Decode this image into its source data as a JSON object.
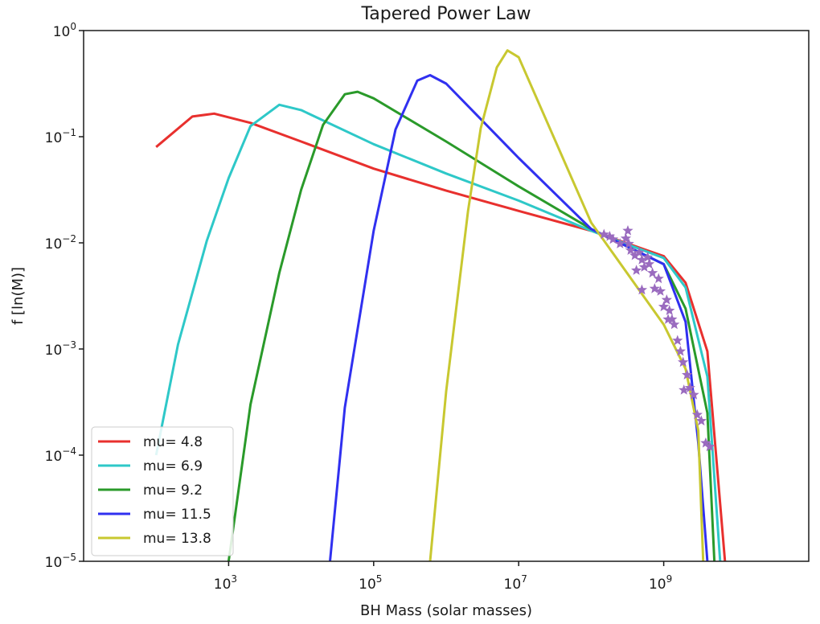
{
  "chart_data": {
    "type": "line",
    "title": "Tapered Power Law",
    "xlabel": "BH Mass (solar masses)",
    "ylabel": "f [ln(M)]",
    "xscale": "log",
    "yscale": "log",
    "xlim": [
      10.0,
      100000000000.0
    ],
    "ylim": [
      1e-05,
      1
    ],
    "x_ticks": [
      {
        "value": 1000,
        "base": "10",
        "exp": "3"
      },
      {
        "value": 100000,
        "base": "10",
        "exp": "5"
      },
      {
        "value": 10000000,
        "base": "10",
        "exp": "7"
      },
      {
        "value": 1000000000,
        "base": "10",
        "exp": "9"
      }
    ],
    "y_ticks": [
      {
        "value": 1,
        "base": "10",
        "exp": "0"
      },
      {
        "value": 0.1,
        "base": "10",
        "exp": "−1"
      },
      {
        "value": 0.01,
        "base": "10",
        "exp": "−2"
      },
      {
        "value": 0.001,
        "base": "10",
        "exp": "−3"
      },
      {
        "value": 0.0001,
        "base": "10",
        "exp": "−4"
      },
      {
        "value": 1e-05,
        "base": "10",
        "exp": "−5"
      }
    ],
    "legend_position": "lower-left",
    "grid": false,
    "series": [
      {
        "name": "mu= 4.8",
        "color": "#e8302e",
        "mu": 4.8,
        "ypeak": 0.165,
        "points": [
          [
            100,
            0.08
          ],
          [
            316,
            0.155
          ],
          [
            631,
            0.165
          ],
          [
            2000,
            0.135
          ],
          [
            10000.0,
            0.09
          ],
          [
            100000.0,
            0.05
          ],
          [
            1000000.0,
            0.031
          ],
          [
            10000000.0,
            0.02
          ],
          [
            100000000.0,
            0.013
          ],
          [
            1000000000.0,
            0.0075
          ],
          [
            2000000000.0,
            0.0042
          ],
          [
            4000000000.0,
            0.00095
          ],
          [
            7000000000.0,
            1e-05
          ]
        ]
      },
      {
        "name": "mu= 6.9",
        "color": "#2ec8c8",
        "mu": 6.9,
        "ypeak": 0.2,
        "points": [
          [
            100,
            0.0001
          ],
          [
            200,
            0.0011
          ],
          [
            501,
            0.0105
          ],
          [
            1000.0,
            0.0407
          ],
          [
            2000.0,
            0.126
          ],
          [
            5000.0,
            0.2
          ],
          [
            10000.0,
            0.178
          ],
          [
            100000.0,
            0.085
          ],
          [
            1000000.0,
            0.045
          ],
          [
            10000000.0,
            0.025
          ],
          [
            100000000.0,
            0.013
          ],
          [
            1000000000.0,
            0.0072
          ],
          [
            2000000000.0,
            0.0038
          ],
          [
            4000000000.0,
            0.00055
          ],
          [
            6000000000.0,
            1e-05
          ]
        ]
      },
      {
        "name": "mu= 9.2",
        "color": "#2a9a2a",
        "mu": 9.2,
        "ypeak": 0.265,
        "points": [
          [
            1000,
            1e-05
          ],
          [
            2000.0,
            0.0003
          ],
          [
            5000.0,
            0.0052
          ],
          [
            10000.0,
            0.0316
          ],
          [
            20000.0,
            0.129
          ],
          [
            40000.0,
            0.251
          ],
          [
            60000.0,
            0.265
          ],
          [
            100000.0,
            0.23
          ],
          [
            1000000.0,
            0.09
          ],
          [
            10000000.0,
            0.034
          ],
          [
            100000000.0,
            0.0135
          ],
          [
            1000000000.0,
            0.0063
          ],
          [
            2000000000.0,
            0.0024
          ],
          [
            4000000000.0,
            0.00025
          ],
          [
            5000000000.0,
            1e-05
          ]
        ]
      },
      {
        "name": "mu= 11.5",
        "color": "#3030f0",
        "mu": 11.5,
        "ypeak": 0.38,
        "points": [
          [
            25000.0,
            1e-05
          ],
          [
            40000.0,
            0.00028
          ],
          [
            100000.0,
            0.013
          ],
          [
            200000.0,
            0.117
          ],
          [
            400000.0,
            0.338
          ],
          [
            600000.0,
            0.38
          ],
          [
            1000000.0,
            0.316
          ],
          [
            10000000.0,
            0.063
          ],
          [
            100000000.0,
            0.0135
          ],
          [
            1000000000.0,
            0.0063
          ],
          [
            2000000000.0,
            0.0018
          ],
          [
            3000000000.0,
            0.00013
          ],
          [
            4000000000.0,
            1e-05
          ]
        ]
      },
      {
        "name": "mu= 13.8",
        "color": "#c8c830",
        "mu": 13.8,
        "ypeak": 0.65,
        "points": [
          [
            600000.0,
            1e-05
          ],
          [
            1000000.0,
            0.0004
          ],
          [
            2000000.0,
            0.02
          ],
          [
            3000000.0,
            0.12
          ],
          [
            5000000.0,
            0.45
          ],
          [
            7000000.0,
            0.65
          ],
          [
            10000000.0,
            0.56
          ],
          [
            100000000.0,
            0.0155
          ],
          [
            1000000000.0,
            0.0017
          ],
          [
            2000000000.0,
            0.00065
          ],
          [
            3000000000.0,
            0.00017
          ],
          [
            3500000000.0,
            1e-05
          ]
        ]
      }
    ],
    "scatter": {
      "marker": "star",
      "color": "#9a6bbf",
      "points": [
        [
          150000000.0,
          0.012
        ],
        [
          180000000.0,
          0.0115
        ],
        [
          200000000.0,
          0.0108
        ],
        [
          250000000.0,
          0.0098
        ],
        [
          300000000.0,
          0.011
        ],
        [
          320000000.0,
          0.013
        ],
        [
          350000000.0,
          0.0085
        ],
        [
          330000000.0,
          0.0098
        ],
        [
          400000000.0,
          0.0076
        ],
        [
          420000000.0,
          0.0055
        ],
        [
          460000000.0,
          0.0081
        ],
        [
          500000000.0,
          0.0069
        ],
        [
          540000000.0,
          0.0059
        ],
        [
          600000000.0,
          0.0073
        ],
        [
          630000000.0,
          0.0063
        ],
        [
          700000000.0,
          0.0052
        ],
        [
          750000000.0,
          0.0037
        ],
        [
          500000000.0,
          0.0036
        ],
        [
          850000000.0,
          0.0046
        ],
        [
          900000000.0,
          0.0035
        ],
        [
          1000000000.0,
          0.0025
        ],
        [
          1100000000.0,
          0.0029
        ],
        [
          1150000000.0,
          0.0019
        ],
        [
          1200000000.0,
          0.0023
        ],
        [
          1300000000.0,
          0.0019
        ],
        [
          1400000000.0,
          0.0017
        ],
        [
          1550000000.0,
          0.0012
        ],
        [
          1700000000.0,
          0.00095
        ],
        [
          1850000000.0,
          0.00075
        ],
        [
          1900000000.0,
          0.00041
        ],
        [
          2100000000.0,
          0.00057
        ],
        [
          2300000000.0,
          0.00043
        ],
        [
          2600000000.0,
          0.00037
        ],
        [
          2900000000.0,
          0.00024
        ],
        [
          3300000000.0,
          0.00021
        ],
        [
          3800000000.0,
          0.00013
        ],
        [
          4300000000.0,
          0.00012
        ]
      ]
    }
  }
}
